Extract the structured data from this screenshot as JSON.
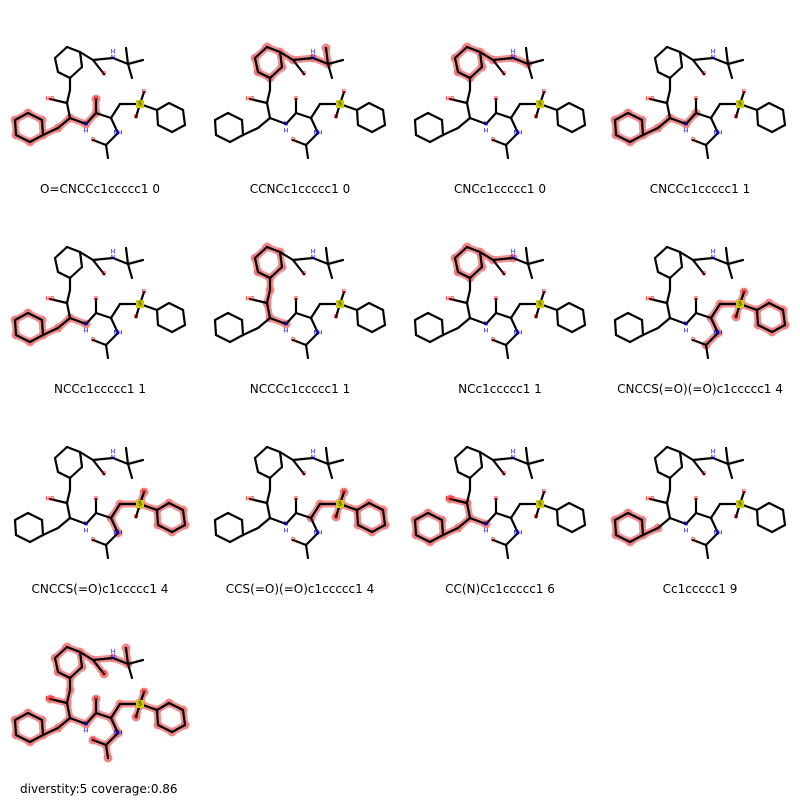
{
  "panels": [
    {
      "caption": "O=CNCCc1ccccc1 0",
      "highlight": "o-cn-cc-ph"
    },
    {
      "caption": "CCNCc1ccccc1 0",
      "highlight": "ccnc-topbenzyl"
    },
    {
      "caption": "CNCc1ccccc1 0",
      "highlight": "cnc-topbenzyl"
    },
    {
      "caption": "CNCCc1ccccc1 1",
      "highlight": "cncc-phbottom"
    },
    {
      "caption": "NCCc1ccccc1 1",
      "highlight": "ncc-phbottom"
    },
    {
      "caption": "NCCCc1ccccc1 1",
      "highlight": "nccc-top"
    },
    {
      "caption": "NCc1ccccc1 1",
      "highlight": "nc-top"
    },
    {
      "caption": "CNCCS(=O)(=O)c1ccccc1 4",
      "highlight": "sulfonyl-full"
    },
    {
      "caption": "CNCCS(=O)c1ccccc1 4",
      "highlight": "sulfonyl-one"
    },
    {
      "caption": "CCS(=O)(=O)c1ccccc1 4",
      "highlight": "sulfonyl-ccs"
    },
    {
      "caption": "CC(N)Cc1ccccc1 6",
      "highlight": "ccn-ph"
    },
    {
      "caption": "Cc1ccccc1 9",
      "highlight": "ph-only"
    },
    {
      "caption": "",
      "highlight": "all"
    }
  ],
  "summary": "diverstity:5 coverage:0.86",
  "atom_labels": {
    "nh_top": "N",
    "h_top": "H",
    "o_amide_top": "O",
    "ho": "HO",
    "h_mid": "H",
    "n_mid": "N",
    "o_mid": "O",
    "s": "S",
    "o_s1": "O",
    "o_s2": "O",
    "nh_lower": "NH",
    "o_acetyl": "O"
  },
  "colors": {
    "highlight": "#f08080",
    "nitrogen": "#0000ff",
    "oxygen": "#ff0000",
    "sulfur": "#cccc00",
    "sulfur_highlight": "#e8a33c"
  }
}
